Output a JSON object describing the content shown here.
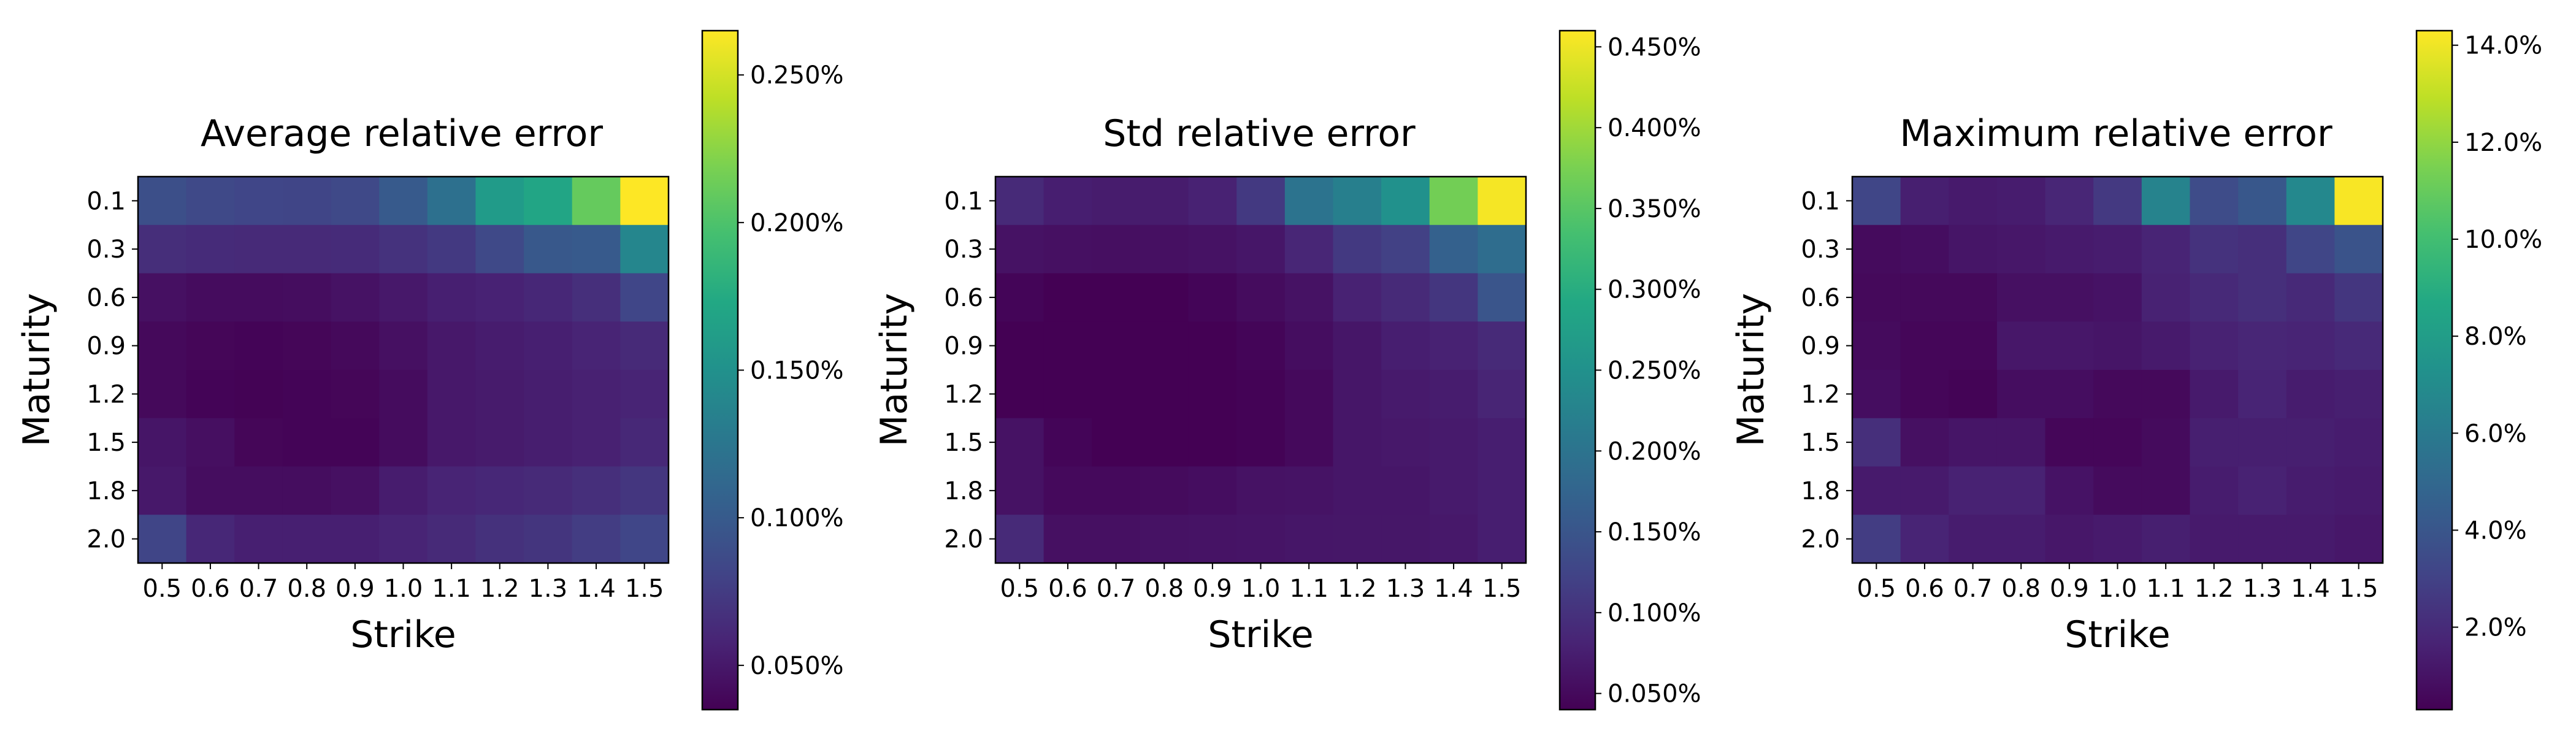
{
  "chart_data": [
    {
      "type": "heatmap",
      "title": "Average relative error",
      "xlabel": "Strike",
      "ylabel": "Maturity",
      "x": [
        "0.5",
        "0.6",
        "0.7",
        "0.8",
        "0.9",
        "1.0",
        "1.1",
        "1.2",
        "1.3",
        "1.4",
        "1.5"
      ],
      "y": [
        "0.1",
        "0.3",
        "0.6",
        "0.9",
        "1.2",
        "1.5",
        "1.8",
        "2.0"
      ],
      "values_percent": [
        [
          0.09,
          0.085,
          0.083,
          0.082,
          0.085,
          0.1,
          0.12,
          0.16,
          0.17,
          0.21,
          0.265
        ],
        [
          0.065,
          0.063,
          0.062,
          0.062,
          0.063,
          0.068,
          0.073,
          0.085,
          0.098,
          0.1,
          0.14
        ],
        [
          0.045,
          0.042,
          0.042,
          0.043,
          0.046,
          0.05,
          0.055,
          0.057,
          0.06,
          0.066,
          0.083
        ],
        [
          0.04,
          0.038,
          0.037,
          0.038,
          0.04,
          0.045,
          0.05,
          0.053,
          0.055,
          0.058,
          0.062
        ],
        [
          0.04,
          0.037,
          0.036,
          0.037,
          0.038,
          0.042,
          0.05,
          0.052,
          0.054,
          0.056,
          0.058
        ],
        [
          0.048,
          0.044,
          0.038,
          0.037,
          0.037,
          0.042,
          0.05,
          0.052,
          0.054,
          0.056,
          0.061
        ],
        [
          0.05,
          0.043,
          0.043,
          0.043,
          0.045,
          0.053,
          0.058,
          0.06,
          0.062,
          0.066,
          0.071
        ],
        [
          0.082,
          0.06,
          0.055,
          0.055,
          0.055,
          0.058,
          0.062,
          0.067,
          0.07,
          0.076,
          0.083
        ]
      ],
      "colorbar": {
        "min": 0.035,
        "max": 0.265,
        "ticks": [
          0.05,
          0.1,
          0.15,
          0.2,
          0.25
        ],
        "tick_labels": [
          "0.050%",
          "0.100%",
          "0.150%",
          "0.200%",
          "0.250%"
        ]
      },
      "colormap": "viridis"
    },
    {
      "type": "heatmap",
      "title": "Std relative error",
      "xlabel": "Strike",
      "ylabel": "Maturity",
      "x": [
        "0.5",
        "0.6",
        "0.7",
        "0.8",
        "0.9",
        "1.0",
        "1.1",
        "1.2",
        "1.3",
        "1.4",
        "1.5"
      ],
      "y": [
        "0.1",
        "0.3",
        "0.6",
        "0.9",
        "1.2",
        "1.5",
        "1.8",
        "2.0"
      ],
      "values_percent": [
        [
          0.09,
          0.075,
          0.072,
          0.072,
          0.08,
          0.11,
          0.2,
          0.22,
          0.25,
          0.37,
          0.455
        ],
        [
          0.06,
          0.058,
          0.057,
          0.058,
          0.06,
          0.065,
          0.085,
          0.11,
          0.12,
          0.17,
          0.19
        ],
        [
          0.045,
          0.04,
          0.038,
          0.04,
          0.045,
          0.053,
          0.06,
          0.08,
          0.09,
          0.105,
          0.15
        ],
        [
          0.04,
          0.035,
          0.035,
          0.036,
          0.04,
          0.045,
          0.055,
          0.065,
          0.075,
          0.08,
          0.09
        ],
        [
          0.038,
          0.035,
          0.033,
          0.035,
          0.038,
          0.043,
          0.05,
          0.065,
          0.07,
          0.073,
          0.083
        ],
        [
          0.06,
          0.045,
          0.04,
          0.038,
          0.038,
          0.043,
          0.05,
          0.065,
          0.068,
          0.07,
          0.075
        ],
        [
          0.06,
          0.05,
          0.05,
          0.052,
          0.055,
          0.06,
          0.062,
          0.065,
          0.065,
          0.07,
          0.075
        ],
        [
          0.09,
          0.058,
          0.058,
          0.06,
          0.062,
          0.063,
          0.065,
          0.066,
          0.066,
          0.068,
          0.075
        ]
      ],
      "colorbar": {
        "min": 0.04,
        "max": 0.46,
        "ticks": [
          0.05,
          0.1,
          0.15,
          0.2,
          0.25,
          0.3,
          0.35,
          0.4,
          0.45
        ],
        "tick_labels": [
          "0.050%",
          "0.100%",
          "0.150%",
          "0.200%",
          "0.250%",
          "0.300%",
          "0.350%",
          "0.400%",
          "0.450%"
        ]
      },
      "colormap": "viridis"
    },
    {
      "type": "heatmap",
      "title": "Maximum relative error",
      "xlabel": "Strike",
      "ylabel": "Maturity",
      "x": [
        "0.5",
        "0.6",
        "0.7",
        "0.8",
        "0.9",
        "1.0",
        "1.1",
        "1.2",
        "1.3",
        "1.4",
        "1.5"
      ],
      "y": [
        "0.1",
        "0.3",
        "0.6",
        "0.9",
        "1.2",
        "1.5",
        "1.8",
        "2.0"
      ],
      "values_percent": [
        [
          3.2,
          1.5,
          1.3,
          1.4,
          1.8,
          2.6,
          6.5,
          3.5,
          4.1,
          6.8,
          14.2
        ],
        [
          0.7,
          0.8,
          1.1,
          1.2,
          1.3,
          1.4,
          1.7,
          2.3,
          2.2,
          3.2,
          3.9
        ],
        [
          0.6,
          0.6,
          0.6,
          0.9,
          0.9,
          1.0,
          1.6,
          1.9,
          2.2,
          1.9,
          2.5
        ],
        [
          0.7,
          0.5,
          0.5,
          1.2,
          1.2,
          1.1,
          1.3,
          1.6,
          1.8,
          1.7,
          1.9
        ],
        [
          0.8,
          0.5,
          0.4,
          0.8,
          0.8,
          0.6,
          0.6,
          1.3,
          1.7,
          1.4,
          1.5
        ],
        [
          2.2,
          0.9,
          1.1,
          1.1,
          0.5,
          0.5,
          0.7,
          1.5,
          1.5,
          1.5,
          1.4
        ],
        [
          1.3,
          1.3,
          1.6,
          1.6,
          1.0,
          0.7,
          0.7,
          1.4,
          1.6,
          1.4,
          1.3
        ],
        [
          2.8,
          1.7,
          1.4,
          1.4,
          1.2,
          1.3,
          1.5,
          1.3,
          1.3,
          1.3,
          1.2
        ]
      ],
      "colorbar": {
        "min": 0.3,
        "max": 14.3,
        "ticks": [
          2,
          4,
          6,
          8,
          10,
          12,
          14
        ],
        "tick_labels": [
          "2.0%",
          "4.0%",
          "6.0%",
          "8.0%",
          "10.0%",
          "12.0%",
          "14.0%"
        ]
      },
      "colormap": "viridis"
    }
  ]
}
